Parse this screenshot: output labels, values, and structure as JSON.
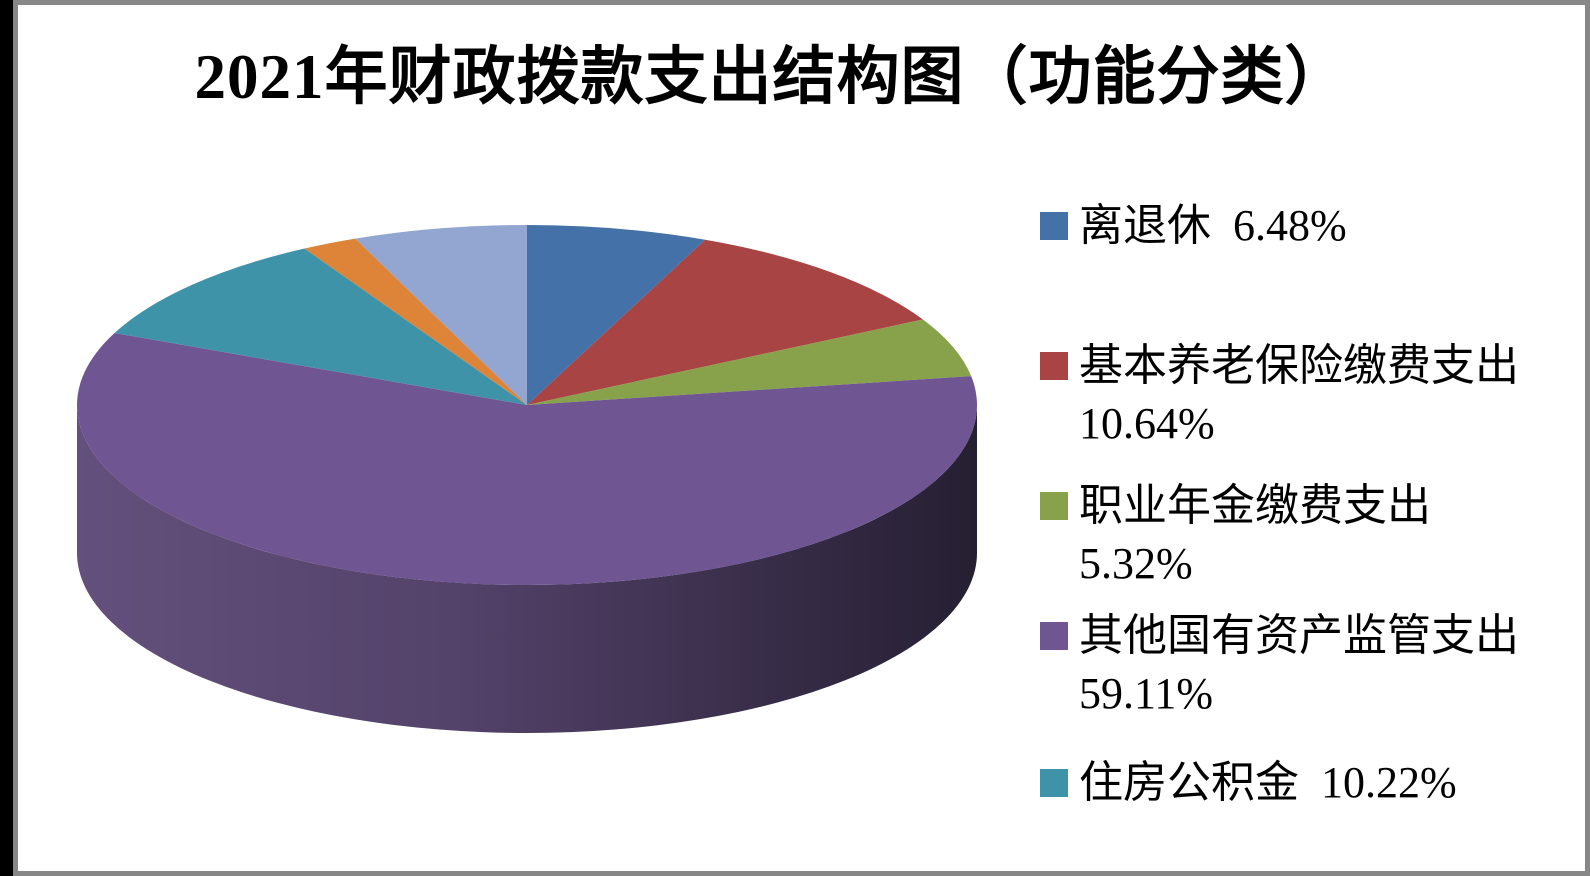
{
  "page": {
    "title": "2021年财政拨款支出结构图（功能分类）"
  },
  "legend": {
    "position": "right",
    "items": [
      {
        "color": "#4571a9",
        "lines": [
          "离退休  6.48%"
        ]
      },
      {
        "color": "#a94444",
        "lines": [
          "基本养老保险缴费支出",
          "10.64%"
        ]
      },
      {
        "color": "#88a24c",
        "lines": [
          "职业年金缴费支出",
          "5.32%"
        ]
      },
      {
        "color": "#6f5693",
        "lines": [
          "其他国有资产监管支出",
          "59.11%"
        ]
      },
      {
        "color": "#3f93a8",
        "lines": [
          "住房公积金  10.22%"
        ]
      }
    ]
  },
  "chart_data": {
    "type": "pie",
    "style": "3d",
    "title": "2021年财政拨款支出结构图（功能分类）",
    "unit": "%",
    "start_angle_deg": 0,
    "direction": "clockwise",
    "legend_position": "right",
    "slices": [
      {
        "label": "离退休",
        "value": 6.48,
        "color": "#4571a9",
        "estimated": false
      },
      {
        "label": "基本养老保险缴费支出",
        "value": 10.64,
        "color": "#a94444",
        "estimated": false
      },
      {
        "label": "职业年金缴费支出",
        "value": 5.32,
        "color": "#88a24c",
        "estimated": false
      },
      {
        "label": "其他国有资产监管支出",
        "value": 59.11,
        "color": "#6f5693",
        "estimated": false
      },
      {
        "label": "住房公积金",
        "value": 10.22,
        "color": "#3f93a8",
        "estimated": false
      },
      {
        "label": "",
        "value": 2.0,
        "color": "#de8438",
        "estimated": true
      },
      {
        "label": "",
        "value": 6.23,
        "color": "#93a6d2",
        "estimated": true
      }
    ],
    "side_gradient": [
      "#63507c",
      "#53426a",
      "#261f32"
    ]
  }
}
